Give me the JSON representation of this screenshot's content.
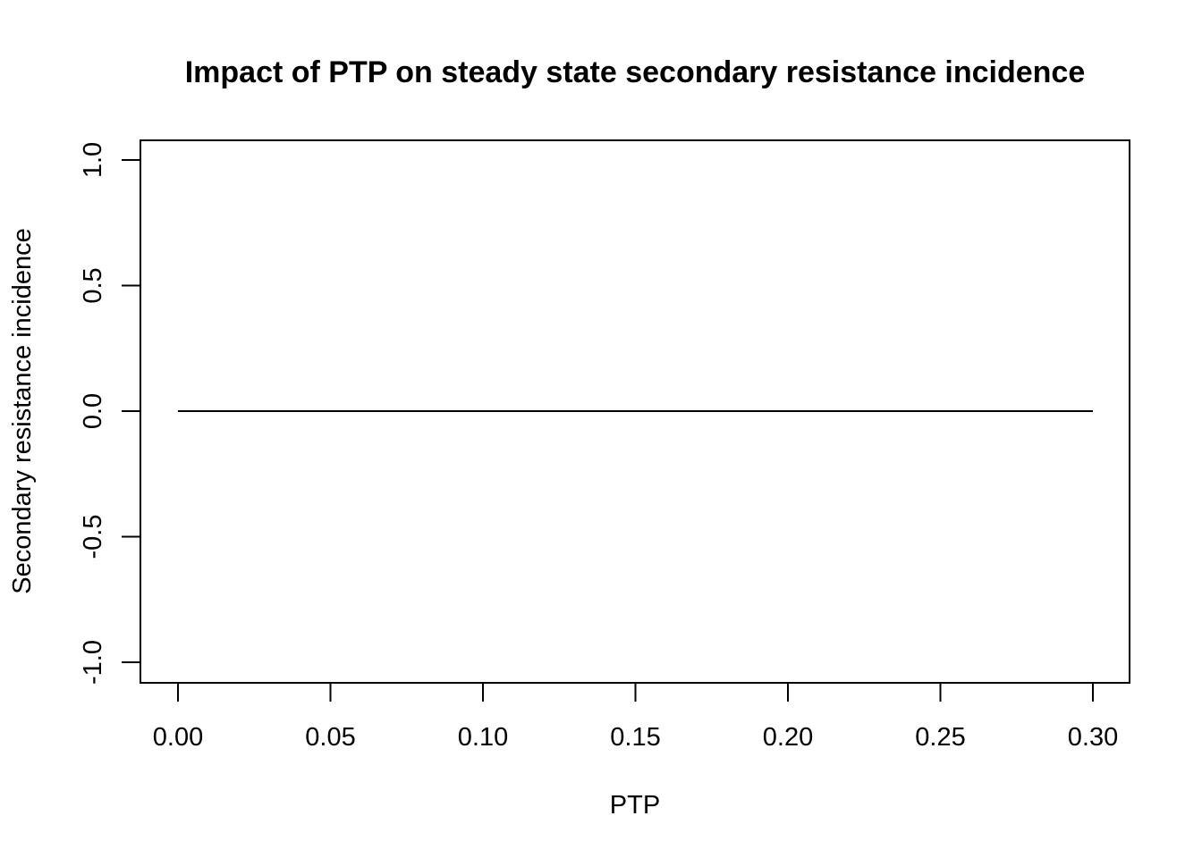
{
  "chart_data": {
    "type": "line",
    "title": "Impact of PTP on steady state secondary resistance incidence",
    "xlabel": "PTP",
    "ylabel": "Secondary resistance incidence",
    "xlim": [
      0.0,
      0.3
    ],
    "ylim": [
      -1.0,
      1.0
    ],
    "x_ticks": [
      "0.00",
      "0.05",
      "0.10",
      "0.15",
      "0.20",
      "0.25",
      "0.30"
    ],
    "y_ticks": [
      "-1.0",
      "-0.5",
      "0.0",
      "0.5",
      "1.0"
    ],
    "grid": false,
    "legend": "none",
    "series": [
      {
        "color": "#000000",
        "x": [
          0.0,
          0.05,
          0.1,
          0.15,
          0.2,
          0.25,
          0.3
        ],
        "y": [
          0,
          0,
          0,
          0,
          0,
          0,
          0
        ]
      }
    ]
  }
}
